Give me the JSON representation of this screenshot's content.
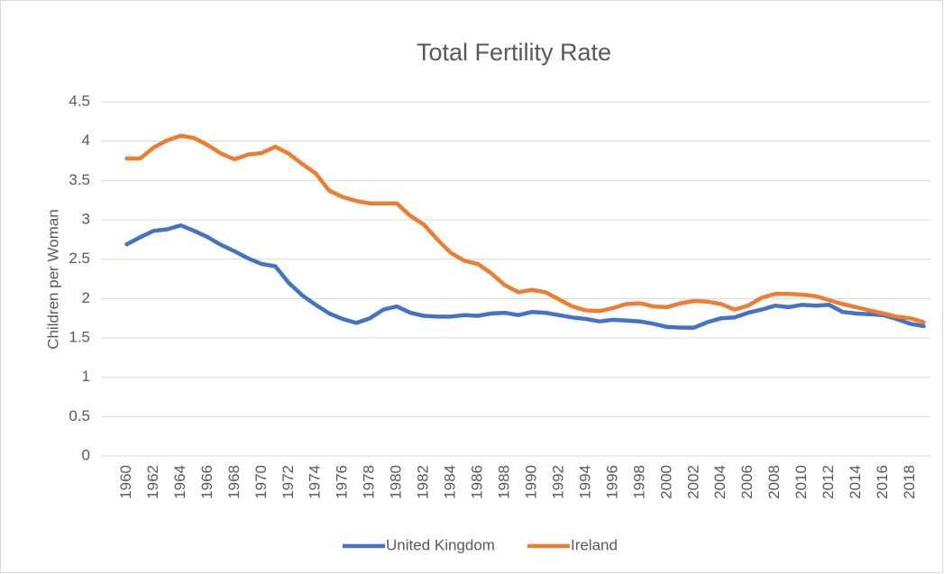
{
  "chart_data": {
    "type": "line",
    "title": "Total Fertility Rate",
    "y_label": "Children per Woman",
    "x": [
      1960,
      1961,
      1962,
      1963,
      1964,
      1965,
      1966,
      1967,
      1968,
      1969,
      1970,
      1971,
      1972,
      1973,
      1974,
      1975,
      1976,
      1977,
      1978,
      1979,
      1980,
      1981,
      1982,
      1983,
      1984,
      1985,
      1986,
      1987,
      1988,
      1989,
      1990,
      1991,
      1992,
      1993,
      1994,
      1995,
      1996,
      1997,
      1998,
      1999,
      2000,
      2001,
      2002,
      2003,
      2004,
      2005,
      2006,
      2007,
      2008,
      2009,
      2010,
      2011,
      2012,
      2013,
      2014,
      2015,
      2016,
      2017,
      2018,
      2019
    ],
    "series": [
      {
        "name": "United Kingdom",
        "color": "#4472c4",
        "values": [
          2.69,
          2.78,
          2.86,
          2.88,
          2.93,
          2.86,
          2.78,
          2.68,
          2.6,
          2.51,
          2.44,
          2.41,
          2.2,
          2.04,
          1.92,
          1.81,
          1.74,
          1.69,
          1.75,
          1.86,
          1.9,
          1.82,
          1.78,
          1.77,
          1.77,
          1.79,
          1.78,
          1.81,
          1.82,
          1.79,
          1.83,
          1.82,
          1.79,
          1.76,
          1.74,
          1.71,
          1.73,
          1.72,
          1.71,
          1.68,
          1.64,
          1.63,
          1.63,
          1.7,
          1.75,
          1.76,
          1.82,
          1.86,
          1.91,
          1.89,
          1.92,
          1.91,
          1.92,
          1.83,
          1.81,
          1.8,
          1.79,
          1.74,
          1.68,
          1.65
        ]
      },
      {
        "name": "Ireland",
        "color": "#ed7d31",
        "values": [
          3.78,
          3.78,
          3.92,
          4.01,
          4.07,
          4.04,
          3.95,
          3.84,
          3.77,
          3.83,
          3.85,
          3.93,
          3.84,
          3.71,
          3.59,
          3.37,
          3.29,
          3.24,
          3.21,
          3.21,
          3.21,
          3.05,
          2.94,
          2.75,
          2.58,
          2.48,
          2.44,
          2.32,
          2.17,
          2.08,
          2.11,
          2.08,
          1.99,
          1.9,
          1.85,
          1.84,
          1.88,
          1.93,
          1.94,
          1.9,
          1.89,
          1.94,
          1.97,
          1.96,
          1.93,
          1.86,
          1.91,
          2.01,
          2.06,
          2.06,
          2.05,
          2.03,
          1.98,
          1.93,
          1.89,
          1.85,
          1.81,
          1.77,
          1.75,
          1.7
        ]
      }
    ],
    "xlim": [
      1958.1,
      2019.5
    ],
    "xticks": [
      1960,
      1962,
      1964,
      1966,
      1968,
      1970,
      1972,
      1974,
      1976,
      1978,
      1980,
      1982,
      1984,
      1986,
      1988,
      1990,
      1992,
      1994,
      1996,
      1998,
      2000,
      2002,
      2004,
      2006,
      2008,
      2010,
      2012,
      2014,
      2016,
      2018
    ],
    "ylim": [
      0,
      4.5
    ],
    "yticks": [
      0,
      0.5,
      1,
      1.5,
      2,
      2.5,
      3,
      3.5,
      4,
      4.5
    ],
    "grid": true,
    "legend": "bottom"
  }
}
